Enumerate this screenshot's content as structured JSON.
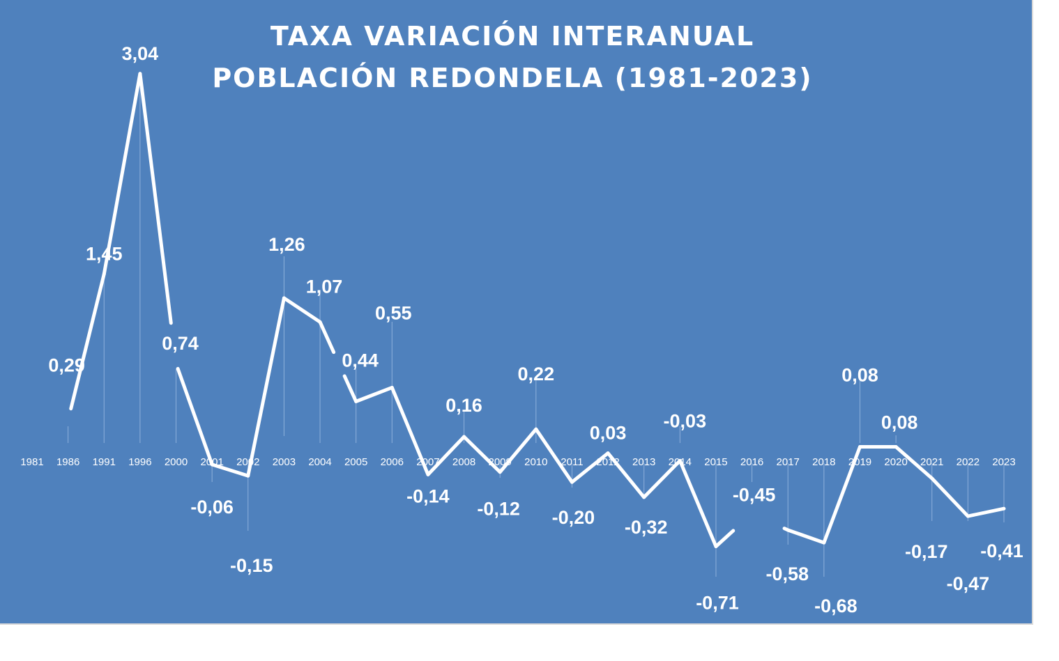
{
  "chart_data": {
    "type": "line",
    "title": "TAXA VARIACIÓN INTERANUAL",
    "subtitle": "POBLACIÓN REDONDELA (1981-2023)",
    "xlabel": "",
    "ylabel": "",
    "grid": false,
    "legend": "none",
    "categories": [
      "1981",
      "1986",
      "1991",
      "1996",
      "2000",
      "2001",
      "2002",
      "2003",
      "2004",
      "2005",
      "2006",
      "2007",
      "2008",
      "2009",
      "2010",
      "2011",
      "2012",
      "2013",
      "2014",
      "2015",
      "2016",
      "2017",
      "2018",
      "2019",
      "2020",
      "2021",
      "2022",
      "2023"
    ],
    "series": [
      {
        "values": [
          null,
          0.29,
          1.45,
          3.04,
          0.74,
          -0.06,
          -0.15,
          1.26,
          1.07,
          0.44,
          0.55,
          -0.14,
          0.16,
          -0.12,
          0.22,
          -0.2,
          0.03,
          -0.32,
          -0.03,
          -0.71,
          -0.45,
          -0.58,
          -0.68,
          0.08,
          0.08,
          -0.17,
          -0.47,
          -0.41
        ],
        "labels": [
          "",
          "0,29",
          "1,45",
          "3,04",
          "0,74",
          "-0,06",
          "-0,15",
          "1,26",
          "1,07",
          "0,44",
          "0,55",
          "-0,14",
          "0,16",
          "-0,12",
          "0,22",
          "-0,20",
          "0,03",
          "-0,32",
          "-0,03",
          "-0,71",
          "-0,45",
          "-0,58",
          "-0,68",
          "0,08",
          "0,08",
          "-0,17",
          "-0,47",
          "-0,41"
        ]
      }
    ],
    "colors": {
      "background": "#4f81bd",
      "line": "#ffffff",
      "text": "#ffffff",
      "leader": "#a9c4e8"
    }
  }
}
